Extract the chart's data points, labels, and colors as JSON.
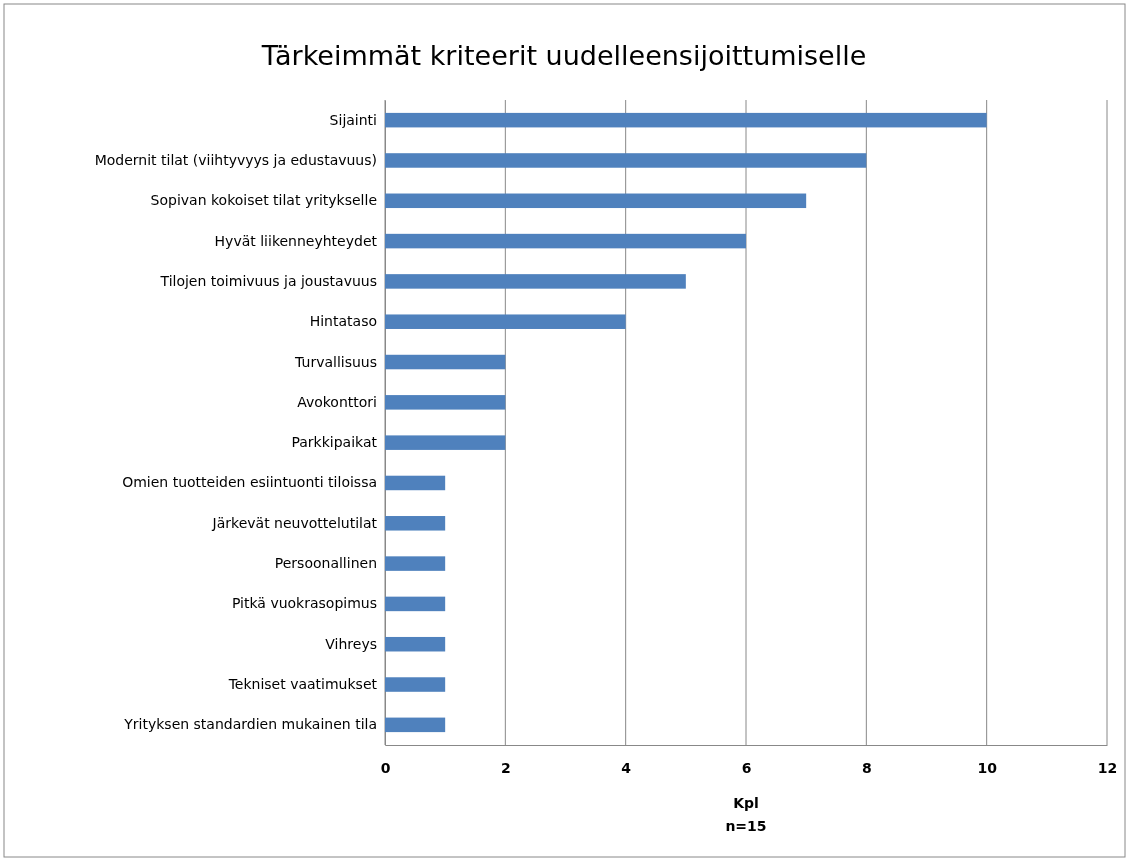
{
  "chart_data": {
    "type": "bar",
    "orientation": "horizontal",
    "title": "Tärkeimmät kriteerit uudelleensijoittumiselle",
    "categories": [
      "Sijainti",
      "Modernit tilat (viihtyvyys ja edustavuus)",
      "Sopivan kokoiset tilat yritykselle",
      "Hyvät liikenneyhteydet",
      "Tilojen toimivuus ja joustavuus",
      "Hintataso",
      "Turvallisuus",
      "Avokonttori",
      "Parkkipaikat",
      "Omien tuotteiden esiintuonti tiloissa",
      "Järkevät neuvottelutilat",
      "Persoonallinen",
      "Pitkä vuokrasopimus",
      "Vihreys",
      "Tekniset vaatimukset",
      "Yrityksen standardien mukainen tila"
    ],
    "values": [
      10,
      8,
      7,
      6,
      5,
      4,
      2,
      2,
      2,
      1,
      1,
      1,
      1,
      1,
      1,
      1
    ],
    "color": "#4f81bd",
    "xlim": [
      0,
      12
    ],
    "xticks": [
      0,
      2,
      4,
      6,
      8,
      10,
      12
    ],
    "grid": "x",
    "xlabel": "Kpl",
    "annotations": [
      "n=15"
    ]
  }
}
